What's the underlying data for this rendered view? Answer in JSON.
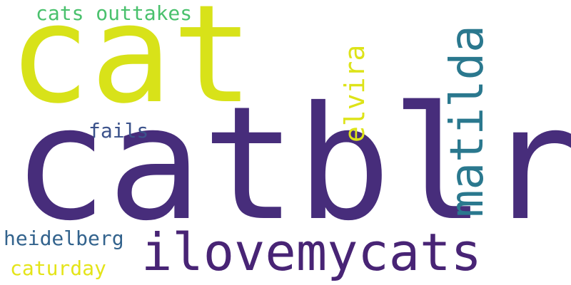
{
  "words": {
    "catblr": {
      "text": "catblr",
      "color": "#472d7b"
    },
    "cat": {
      "text": "cat",
      "color": "#d8e219"
    },
    "ilovemycats": {
      "text": "ilovemycats",
      "color": "#482475"
    },
    "matilda": {
      "text": "matilda",
      "color": "#2a788e"
    },
    "elvira": {
      "text": "elvira",
      "color": "#dde318"
    },
    "cats_outtakes": {
      "text": "cats outtakes",
      "color": "#4ac16d"
    },
    "fails": {
      "text": "fails",
      "color": "#3b528b"
    },
    "heidelberg": {
      "text": "heidelberg",
      "color": "#33638d"
    },
    "caturday": {
      "text": "caturday",
      "color": "#e4e419"
    }
  }
}
